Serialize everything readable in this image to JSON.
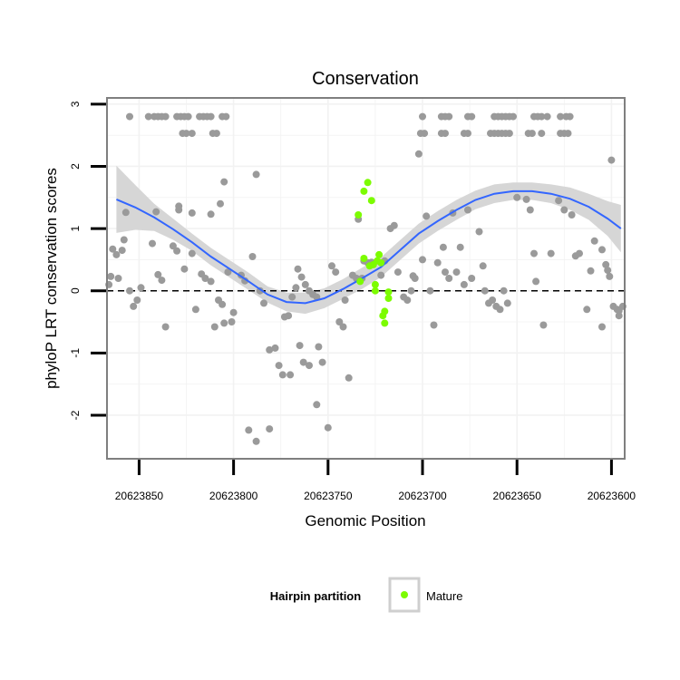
{
  "chart_data": {
    "type": "scatter",
    "title": "Conservation",
    "xlabel": "Genomic Position",
    "ylabel": "phyloP LRT conservation scores",
    "x_reversed": true,
    "xlim": [
      20623867,
      20623593
    ],
    "ylim": [
      -2.7,
      3.1
    ],
    "x_ticks": [
      20623850,
      20623800,
      20623750,
      20623700,
      20623650,
      20623600
    ],
    "y_ticks": [
      -2,
      -1,
      0,
      1,
      2,
      3
    ],
    "grid": true,
    "reference_line": {
      "y": 0,
      "style": "dashed",
      "color": "#000000"
    },
    "legend": {
      "title": "Hairpin partition",
      "entries": [
        "Mature"
      ],
      "placement": "bottom"
    },
    "colors": {
      "other": "#9a9a9a",
      "mature": "#7cfc00",
      "smooth_line": "#3366ff",
      "ribbon": "#d4d4d4",
      "panel_border": "#7f7f7f",
      "grid": "#f2f2f2"
    },
    "series": [
      {
        "legend": false,
        "color": "#9a9a9a",
        "points": [
          [
            20623855,
            2.8
          ],
          [
            20623845,
            2.8
          ],
          [
            20623842,
            2.8
          ],
          [
            20623840,
            2.8
          ],
          [
            20623838,
            2.8
          ],
          [
            20623836,
            2.8
          ],
          [
            20623830,
            2.8
          ],
          [
            20623828,
            2.8
          ],
          [
            20623826,
            2.8
          ],
          [
            20623824,
            2.8
          ],
          [
            20623818,
            2.8
          ],
          [
            20623816,
            2.8
          ],
          [
            20623814,
            2.8
          ],
          [
            20623812,
            2.8
          ],
          [
            20623806,
            2.8
          ],
          [
            20623804,
            2.8
          ],
          [
            20623827,
            2.53
          ],
          [
            20623825,
            2.53
          ],
          [
            20623822,
            2.53
          ],
          [
            20623811,
            2.53
          ],
          [
            20623809,
            2.53
          ],
          [
            20623700,
            2.8
          ],
          [
            20623690,
            2.8
          ],
          [
            20623688,
            2.8
          ],
          [
            20623686,
            2.8
          ],
          [
            20623676,
            2.8
          ],
          [
            20623674,
            2.8
          ],
          [
            20623662,
            2.8
          ],
          [
            20623660,
            2.8
          ],
          [
            20623658,
            2.8
          ],
          [
            20623656,
            2.8
          ],
          [
            20623654,
            2.8
          ],
          [
            20623652,
            2.8
          ],
          [
            20623641,
            2.8
          ],
          [
            20623639,
            2.8
          ],
          [
            20623637,
            2.8
          ],
          [
            20623634,
            2.8
          ],
          [
            20623627,
            2.8
          ],
          [
            20623624,
            2.8
          ],
          [
            20623622,
            2.8
          ],
          [
            20623701,
            2.53
          ],
          [
            20623699,
            2.53
          ],
          [
            20623690,
            2.53
          ],
          [
            20623688,
            2.53
          ],
          [
            20623678,
            2.53
          ],
          [
            20623676,
            2.53
          ],
          [
            20623664,
            2.53
          ],
          [
            20623662,
            2.53
          ],
          [
            20623660,
            2.53
          ],
          [
            20623658,
            2.53
          ],
          [
            20623656,
            2.53
          ],
          [
            20623654,
            2.53
          ],
          [
            20623644,
            2.53
          ],
          [
            20623642,
            2.53
          ],
          [
            20623637,
            2.53
          ],
          [
            20623627,
            2.53
          ],
          [
            20623625,
            2.53
          ],
          [
            20623623,
            2.53
          ],
          [
            20623702,
            2.2
          ],
          [
            20623600,
            2.1
          ],
          [
            20623807,
            1.4
          ],
          [
            20623812,
            1.23
          ],
          [
            20623822,
            1.25
          ],
          [
            20623829,
            1.3
          ],
          [
            20623829,
            1.36
          ],
          [
            20623841,
            1.27
          ],
          [
            20623866,
            0.1
          ],
          [
            20623865,
            0.23
          ],
          [
            20623864,
            0.67
          ],
          [
            20623862,
            0.58
          ],
          [
            20623861,
            0.2
          ],
          [
            20623859,
            0.65
          ],
          [
            20623858,
            0.82
          ],
          [
            20623857,
            1.26
          ],
          [
            20623855,
            0.0
          ],
          [
            20623853,
            -0.25
          ],
          [
            20623851,
            -0.15
          ],
          [
            20623849,
            0.05
          ],
          [
            20623843,
            0.76
          ],
          [
            20623840,
            0.26
          ],
          [
            20623838,
            0.17
          ],
          [
            20623836,
            -0.58
          ],
          [
            20623832,
            0.72
          ],
          [
            20623830,
            0.64
          ],
          [
            20623826,
            0.35
          ],
          [
            20623822,
            0.6
          ],
          [
            20623820,
            -0.3
          ],
          [
            20623817,
            0.27
          ],
          [
            20623815,
            0.2
          ],
          [
            20623812,
            0.15
          ],
          [
            20623810,
            -0.58
          ],
          [
            20623808,
            -0.15
          ],
          [
            20623806,
            -0.22
          ],
          [
            20623805,
            -0.52
          ],
          [
            20623800,
            -0.35
          ],
          [
            20623803,
            0.3
          ],
          [
            20623796,
            0.25
          ],
          [
            20623794,
            0.16
          ],
          [
            20623790,
            0.55
          ],
          [
            20623788,
            1.87
          ],
          [
            20623786,
            0.0
          ],
          [
            20623784,
            -0.2
          ],
          [
            20623781,
            -0.95
          ],
          [
            20623778,
            -0.92
          ],
          [
            20623776,
            -1.2
          ],
          [
            20623774,
            -1.35
          ],
          [
            20623773,
            -0.42
          ],
          [
            20623771,
            -0.4
          ],
          [
            20623769,
            -0.1
          ],
          [
            20623767,
            0.05
          ],
          [
            20623766,
            0.35
          ],
          [
            20623764,
            0.22
          ],
          [
            20623762,
            0.1
          ],
          [
            20623760,
            0.0
          ],
          [
            20623758,
            -0.06
          ],
          [
            20623756,
            -0.1
          ],
          [
            20623755,
            -0.9
          ],
          [
            20623753,
            -1.15
          ],
          [
            20623750,
            -2.2
          ],
          [
            20623748,
            0.4
          ],
          [
            20623746,
            0.3
          ],
          [
            20623744,
            -0.5
          ],
          [
            20623742,
            -0.58
          ],
          [
            20623741,
            -0.15
          ],
          [
            20623739,
            -1.4
          ],
          [
            20623737,
            0.25
          ],
          [
            20623735,
            0.2
          ],
          [
            20623734,
            1.15
          ],
          [
            20623732,
            0.2
          ],
          [
            20623731,
            0.48
          ],
          [
            20623729,
            0.45
          ],
          [
            20623727,
            0.46
          ],
          [
            20623722,
            0.25
          ],
          [
            20623720,
            0.48
          ],
          [
            20623717,
            1.0
          ],
          [
            20623715,
            1.05
          ],
          [
            20623713,
            0.3
          ],
          [
            20623710,
            -0.1
          ],
          [
            20623708,
            -0.15
          ],
          [
            20623706,
            0.0
          ],
          [
            20623705,
            0.24
          ],
          [
            20623704,
            0.2
          ],
          [
            20623700,
            0.5
          ],
          [
            20623698,
            1.2
          ],
          [
            20623696,
            0.0
          ],
          [
            20623694,
            -0.55
          ],
          [
            20623692,
            0.45
          ],
          [
            20623689,
            0.7
          ],
          [
            20623688,
            0.3
          ],
          [
            20623686,
            0.2
          ],
          [
            20623684,
            1.25
          ],
          [
            20623682,
            0.3
          ],
          [
            20623680,
            0.7
          ],
          [
            20623678,
            0.1
          ],
          [
            20623676,
            1.3
          ],
          [
            20623674,
            0.2
          ],
          [
            20623670,
            0.95
          ],
          [
            20623668,
            0.4
          ],
          [
            20623667,
            0.0
          ],
          [
            20623665,
            -0.2
          ],
          [
            20623663,
            -0.15
          ],
          [
            20623661,
            -0.25
          ],
          [
            20623659,
            -0.3
          ],
          [
            20623657,
            0.0
          ],
          [
            20623655,
            -0.2
          ],
          [
            20623650,
            1.5
          ],
          [
            20623645,
            1.47
          ],
          [
            20623643,
            1.3
          ],
          [
            20623641,
            0.6
          ],
          [
            20623640,
            0.15
          ],
          [
            20623636,
            -0.55
          ],
          [
            20623632,
            0.6
          ],
          [
            20623628,
            1.45
          ],
          [
            20623625,
            1.3
          ],
          [
            20623621,
            1.22
          ],
          [
            20623619,
            0.56
          ],
          [
            20623617,
            0.6
          ],
          [
            20623613,
            -0.3
          ],
          [
            20623611,
            0.32
          ],
          [
            20623609,
            0.8
          ],
          [
            20623605,
            0.66
          ],
          [
            20623603,
            0.42
          ],
          [
            20623602,
            0.33
          ],
          [
            20623601,
            0.23
          ],
          [
            20623599,
            -0.25
          ],
          [
            20623597,
            -0.3
          ],
          [
            20623596,
            -0.32
          ],
          [
            20623594,
            -0.25
          ],
          [
            20623596,
            -0.4
          ],
          [
            20623605,
            -0.58
          ],
          [
            20623781,
            -2.22
          ],
          [
            20623788,
            -2.42
          ],
          [
            20623792,
            -2.24
          ],
          [
            20623756,
            -1.83
          ],
          [
            20623760,
            -1.2
          ],
          [
            20623763,
            -1.15
          ],
          [
            20623765,
            -0.88
          ],
          [
            20623770,
            -1.35
          ],
          [
            20623805,
            1.75
          ],
          [
            20623801,
            -0.5
          ]
        ]
      },
      {
        "name": "Mature",
        "color": "#7cfc00",
        "points": [
          [
            20623734,
            1.22
          ],
          [
            20623731,
            1.6
          ],
          [
            20623729,
            1.74
          ],
          [
            20623727,
            1.45
          ],
          [
            20623731,
            0.52
          ],
          [
            20623728,
            0.4
          ],
          [
            20623726,
            0.42
          ],
          [
            20623724,
            0.48
          ],
          [
            20623723,
            0.58
          ],
          [
            20623722,
            0.45
          ],
          [
            20623725,
            0.0
          ],
          [
            20623725,
            0.1
          ],
          [
            20623721,
            -0.4
          ],
          [
            20623720,
            -0.33
          ],
          [
            20623718,
            -0.12
          ],
          [
            20623718,
            -0.02
          ],
          [
            20623720,
            -0.52
          ],
          [
            20623733,
            0.15
          ]
        ]
      }
    ],
    "smooth": {
      "x": [
        20623862,
        20623852,
        20623842,
        20623832,
        20623822,
        20623812,
        20623802,
        20623792,
        20623782,
        20623772,
        20623762,
        20623752,
        20623742,
        20623732,
        20623722,
        20623712,
        20623702,
        20623692,
        20623682,
        20623672,
        20623662,
        20623652,
        20623642,
        20623632,
        20623622,
        20623612,
        20623602,
        20623595
      ],
      "y": [
        1.47,
        1.34,
        1.18,
        0.99,
        0.78,
        0.55,
        0.35,
        0.15,
        -0.06,
        -0.18,
        -0.2,
        -0.12,
        0.03,
        0.2,
        0.38,
        0.65,
        0.92,
        1.12,
        1.3,
        1.46,
        1.56,
        1.6,
        1.6,
        1.56,
        1.48,
        1.35,
        1.16,
        1.0
      ],
      "lower": [
        0.93,
        0.98,
        0.96,
        0.82,
        0.64,
        0.41,
        0.21,
        0.01,
        -0.19,
        -0.33,
        -0.37,
        -0.28,
        -0.13,
        0.03,
        0.22,
        0.49,
        0.76,
        0.96,
        1.14,
        1.31,
        1.41,
        1.46,
        1.46,
        1.41,
        1.3,
        1.14,
        0.88,
        0.62
      ],
      "upper": [
        2.01,
        1.7,
        1.4,
        1.16,
        0.92,
        0.69,
        0.49,
        0.29,
        0.07,
        -0.03,
        -0.03,
        0.04,
        0.19,
        0.37,
        0.54,
        0.81,
        1.08,
        1.28,
        1.46,
        1.61,
        1.71,
        1.74,
        1.74,
        1.71,
        1.66,
        1.56,
        1.44,
        1.38
      ]
    }
  }
}
